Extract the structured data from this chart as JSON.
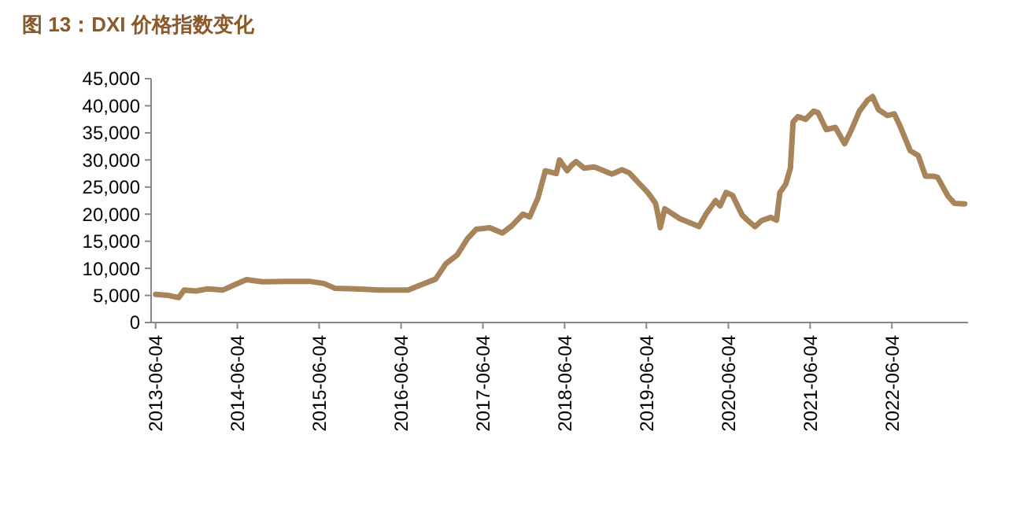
{
  "chart_data": {
    "type": "line",
    "title": "图 13：DXI 价格指数变化",
    "x": [
      "2013-06-04",
      "2013-08-01",
      "2013-09-15",
      "2013-10-10",
      "2013-12-01",
      "2014-01-20",
      "2014-04-01",
      "2014-05-25",
      "2014-07-15",
      "2014-09-25",
      "2015-01-05",
      "2015-04-20",
      "2015-06-25",
      "2015-08-15",
      "2015-11-15",
      "2016-03-01",
      "2016-05-10",
      "2016-07-05",
      "2016-09-15",
      "2016-11-05",
      "2016-12-20",
      "2017-02-10",
      "2017-03-28",
      "2017-05-05",
      "2017-07-05",
      "2017-08-30",
      "2017-10-10",
      "2017-11-30",
      "2017-12-30",
      "2018-02-05",
      "2018-03-10",
      "2018-04-28",
      "2018-05-12",
      "2018-06-15",
      "2018-07-05",
      "2018-07-25",
      "2018-08-30",
      "2018-10-15",
      "2019-01-01",
      "2019-02-15",
      "2019-03-20",
      "2019-04-25",
      "2019-06-10",
      "2019-07-15",
      "2019-07-28",
      "2019-08-05",
      "2019-08-25",
      "2019-10-30",
      "2020-01-25",
      "2020-02-25",
      "2020-04-08",
      "2020-04-28",
      "2020-05-25",
      "2020-06-22",
      "2020-08-05",
      "2020-08-25",
      "2020-10-01",
      "2020-10-30",
      "2020-12-10",
      "2021-01-05",
      "2021-01-20",
      "2021-02-15",
      "2021-03-08",
      "2021-03-20",
      "2021-04-10",
      "2021-05-15",
      "2021-06-20",
      "2021-07-10",
      "2021-08-15",
      "2021-09-25",
      "2021-11-05",
      "2021-12-05",
      "2022-01-10",
      "2022-02-15",
      "2022-03-10",
      "2022-04-05",
      "2022-05-15",
      "2022-06-15",
      "2022-07-10",
      "2022-08-25",
      "2022-09-30",
      "2022-11-01",
      "2022-12-05",
      "2022-12-25",
      "2023-02-10",
      "2023-03-10",
      "2023-04-25"
    ],
    "series": [
      {
        "color": "#a8845a",
        "values": [
          5200,
          5000,
          4600,
          6000,
          5800,
          6200,
          6000,
          7000,
          7900,
          7500,
          7600,
          7600,
          7200,
          6300,
          6200,
          6000,
          6000,
          6000,
          7200,
          8000,
          10800,
          12500,
          15500,
          17200,
          17500,
          16500,
          17800,
          20000,
          19500,
          23000,
          28000,
          27500,
          30000,
          28000,
          29000,
          29700,
          28500,
          28700,
          27400,
          28200,
          27600,
          26000,
          24000,
          22000,
          19500,
          17500,
          21000,
          19200,
          17700,
          20000,
          22500,
          21500,
          24000,
          23500,
          19800,
          19000,
          17700,
          18800,
          19400,
          18900,
          24000,
          25500,
          28500,
          37000,
          38000,
          37500,
          39000,
          38700,
          35600,
          36000,
          33000,
          35500,
          39000,
          41000,
          41700,
          39300,
          38200,
          38500,
          36300,
          31700,
          30800,
          27000,
          27000,
          26800,
          23300,
          22000,
          21900
        ]
      }
    ],
    "xlim": [
      "2013-05-15",
      "2023-05-10"
    ],
    "xticks": [
      "2013-06-04",
      "2014-06-04",
      "2015-06-04",
      "2016-06-04",
      "2017-06-04",
      "2018-06-04",
      "2019-06-04",
      "2020-06-04",
      "2021-06-04",
      "2022-06-04"
    ],
    "ylim": [
      0,
      45000
    ],
    "yticks": [
      {
        "value": 0,
        "label": "0"
      },
      {
        "value": 5000,
        "label": "5,000"
      },
      {
        "value": 10000,
        "label": "10,000"
      },
      {
        "value": 15000,
        "label": "15,000"
      },
      {
        "value": 20000,
        "label": "20,000"
      },
      {
        "value": 25000,
        "label": "25,000"
      },
      {
        "value": 30000,
        "label": "30,000"
      },
      {
        "value": 35000,
        "label": "35,000"
      },
      {
        "value": 40000,
        "label": "40,000"
      },
      {
        "value": 45000,
        "label": "45,000"
      }
    ],
    "grid": false,
    "marker": "none",
    "line_style": "solid"
  }
}
